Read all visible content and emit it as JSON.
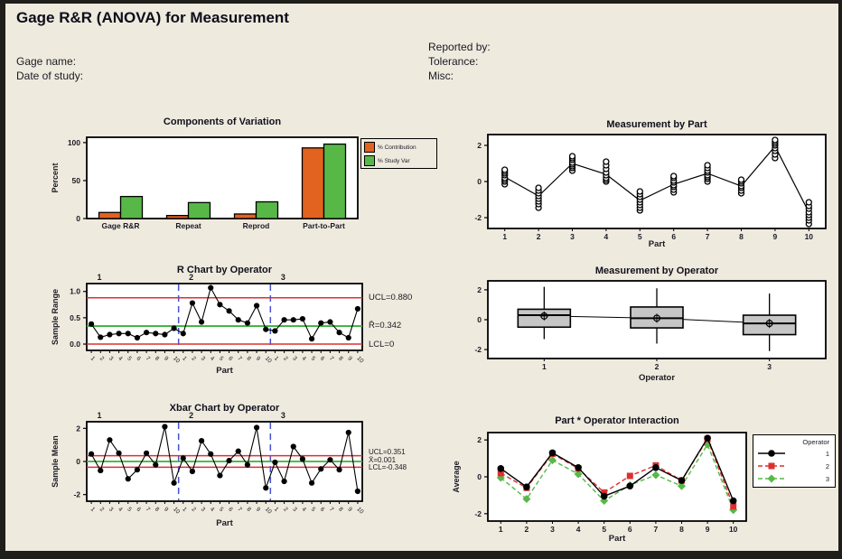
{
  "window": {
    "title": "Gage R&R (ANOVA) for Measurement"
  },
  "header": {
    "left_fields": [
      {
        "label": "Gage name:"
      },
      {
        "label": "Date of study:"
      }
    ],
    "right_fields": [
      {
        "label": "Reported by:"
      },
      {
        "label": "Tolerance:"
      },
      {
        "label": "Misc:"
      }
    ]
  },
  "colors": {
    "background": "#EFEADE",
    "page_border": "#201E1B",
    "text": "#1A1A24",
    "plot_border": "#000000",
    "limit_line": "#DE2F2F",
    "center_line": "#35B33B",
    "separator": "#4553CE",
    "contribution_bar": "#E2621F",
    "study_var_bar": "#57B848",
    "box_fill": "#C6C6C6"
  },
  "chart_data": [
    {
      "type": "bar",
      "title": "Components of Variation",
      "ylabel": "Percent",
      "categories": [
        "Gage R&R",
        "Repeat",
        "Reprod",
        "Part-to-Part"
      ],
      "series": [
        {
          "name": "% Contribution",
          "color": "#E2621F",
          "values": [
            8,
            4,
            6,
            93
          ]
        },
        {
          "name": "% Study Var",
          "color": "#57B848",
          "values": [
            29,
            21,
            22,
            98
          ]
        }
      ],
      "ylim": [
        0,
        107
      ],
      "yticks": [
        0,
        50,
        100
      ],
      "ytick_labels": [
        "0",
        "50",
        "100"
      ],
      "legend_position": "right"
    },
    {
      "type": "control",
      "title": "R Chart by Operator",
      "ylabel": "Sample Range",
      "xlabel": "Part",
      "operators": [
        "1",
        "2",
        "3"
      ],
      "categories": [
        "1",
        "2",
        "3",
        "4",
        "5",
        "6",
        "7",
        "8",
        "9",
        "10"
      ],
      "values": [
        0.38,
        0.13,
        0.18,
        0.2,
        0.2,
        0.12,
        0.22,
        0.2,
        0.18,
        0.3,
        0.2,
        0.78,
        0.42,
        1.07,
        0.75,
        0.63,
        0.46,
        0.4,
        0.73,
        0.28,
        0.25,
        0.46,
        0.46,
        0.48,
        0.1,
        0.4,
        0.42,
        0.22,
        0.12,
        0.67
      ],
      "ucl": 0.88,
      "center": 0.342,
      "lcl": 0,
      "limit_labels": {
        "ucl": "UCL=0.880",
        "center": "R̄=0.342",
        "lcl": "LCL=0"
      },
      "ylim": [
        -0.12,
        1.15
      ],
      "yticks": [
        0,
        0.5,
        1.0
      ],
      "ytick_labels": [
        "0.0",
        "0.5",
        "1.0"
      ]
    },
    {
      "type": "control",
      "title": "Xbar Chart by Operator",
      "ylabel": "Sample Mean",
      "xlabel": "Part",
      "operators": [
        "1",
        "2",
        "3"
      ],
      "categories": [
        "1",
        "2",
        "3",
        "4",
        "5",
        "6",
        "7",
        "8",
        "9",
        "10"
      ],
      "values": [
        0.45,
        -0.55,
        1.3,
        0.5,
        -1.05,
        -0.5,
        0.5,
        -0.2,
        2.1,
        -1.3,
        0.2,
        -0.6,
        1.25,
        0.45,
        -0.85,
        0.05,
        0.62,
        -0.2,
        2.05,
        -1.6,
        -0.05,
        -1.2,
        0.9,
        0.15,
        -1.3,
        -0.45,
        0.1,
        -0.5,
        1.75,
        -1.8
      ],
      "ucl": 0.351,
      "center": 0.001,
      "lcl": -0.348,
      "limit_labels": {
        "ucl": "UCL=0.351",
        "center": "X̄=0.001",
        "lcl": "LCL=-0.348"
      },
      "ylim": [
        -2.4,
        2.4
      ],
      "yticks": [
        -2,
        0,
        2
      ],
      "ytick_labels": [
        "-2",
        "0",
        "2"
      ]
    },
    {
      "type": "scatter_cluster",
      "title": "Measurement by Part",
      "xlabel": "Part",
      "categories": [
        "1",
        "2",
        "3",
        "4",
        "5",
        "6",
        "7",
        "8",
        "9",
        "10"
      ],
      "points": [
        [
          -0.15,
          0.0,
          0.1,
          0.2,
          0.35,
          0.45,
          0.55,
          0.65
        ],
        [
          -1.45,
          -1.25,
          -1.1,
          -0.95,
          -0.8,
          -0.65,
          -0.5,
          -0.35
        ],
        [
          0.6,
          0.75,
          0.85,
          0.95,
          1.05,
          1.2,
          1.3,
          1.4
        ],
        [
          0.0,
          0.1,
          0.2,
          0.35,
          0.5,
          0.7,
          0.9,
          1.1
        ],
        [
          -1.6,
          -1.45,
          -1.3,
          -1.15,
          -1.0,
          -0.85,
          -0.7,
          -0.55
        ],
        [
          -0.6,
          -0.45,
          -0.3,
          -0.2,
          -0.05,
          0.05,
          0.2,
          0.3
        ],
        [
          0.0,
          0.15,
          0.25,
          0.35,
          0.5,
          0.6,
          0.75,
          0.9
        ],
        [
          -0.65,
          -0.5,
          -0.35,
          -0.25,
          -0.1,
          0.0,
          0.1
        ],
        [
          1.3,
          1.5,
          1.7,
          1.85,
          2.0,
          2.1,
          2.2,
          2.3
        ],
        [
          -2.35,
          -2.15,
          -2.0,
          -1.85,
          -1.7,
          -1.5,
          -1.35,
          -1.15
        ]
      ],
      "means": [
        0.25,
        -0.8,
        1.0,
        0.4,
        -1.05,
        -0.15,
        0.45,
        -0.25,
        1.95,
        -1.7
      ],
      "ylim": [
        -2.6,
        2.6
      ],
      "yticks": [
        -2,
        0,
        2
      ],
      "ytick_labels": [
        "-2",
        "0",
        "2"
      ]
    },
    {
      "type": "box",
      "title": "Measurement by Operator",
      "xlabel": "Operator",
      "categories": [
        "1",
        "2",
        "3"
      ],
      "boxes": [
        {
          "whisker_low": -1.3,
          "q1": -0.5,
          "median": 0.3,
          "q3": 0.7,
          "whisker_high": 2.2,
          "mean": 0.25
        },
        {
          "whisker_low": -1.6,
          "q1": -0.55,
          "median": 0.1,
          "q3": 0.85,
          "whisker_high": 2.1,
          "mean": 0.1
        },
        {
          "whisker_low": -2.1,
          "q1": -1.0,
          "median": -0.25,
          "q3": 0.3,
          "whisker_high": 1.75,
          "mean": -0.25
        }
      ],
      "box_fill": "#C6C6C6",
      "ylim": [
        -2.6,
        2.6
      ],
      "yticks": [
        -2,
        0,
        2
      ],
      "ytick_labels": [
        "-2",
        "0",
        "2"
      ]
    },
    {
      "type": "interaction",
      "title": "Part * Operator Interaction",
      "ylabel": "Average",
      "xlabel": "Part",
      "legend_title": "Operator",
      "categories": [
        "1",
        "2",
        "3",
        "4",
        "5",
        "6",
        "7",
        "8",
        "9",
        "10"
      ],
      "series": [
        {
          "name": "1",
          "color": "#000000",
          "marker": "circle",
          "line": "solid",
          "values": [
            0.45,
            -0.55,
            1.3,
            0.5,
            -1.05,
            -0.5,
            0.5,
            -0.2,
            2.1,
            -1.3
          ]
        },
        {
          "name": "2",
          "color": "#DE2F2F",
          "marker": "square",
          "line": "dash",
          "values": [
            0.2,
            -0.6,
            1.25,
            0.45,
            -0.85,
            0.05,
            0.62,
            -0.2,
            2.05,
            -1.6
          ]
        },
        {
          "name": "3",
          "color": "#57B848",
          "marker": "diamond",
          "line": "dash",
          "values": [
            -0.05,
            -1.2,
            0.9,
            0.15,
            -1.3,
            -0.45,
            0.1,
            -0.5,
            1.75,
            -1.8
          ]
        }
      ],
      "ylim": [
        -2.4,
        2.4
      ],
      "yticks": [
        -2,
        0,
        2
      ],
      "ytick_labels": [
        "-2",
        "0",
        "2"
      ]
    }
  ]
}
